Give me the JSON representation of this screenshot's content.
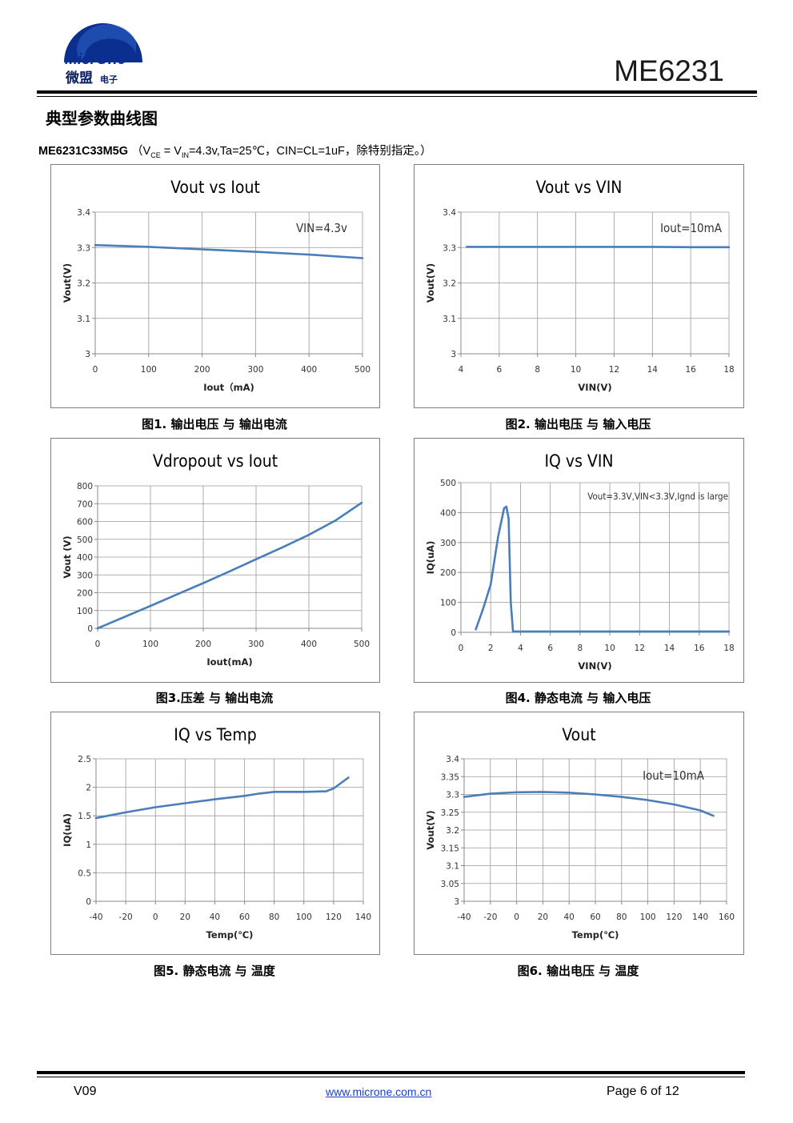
{
  "header": {
    "logo_text_en": "MicrOne",
    "logo_text_cn": "微盟",
    "logo_text_small": "电子",
    "doc_title": "ME6231"
  },
  "section_title": "典型参数曲线图",
  "conditions": {
    "part": "ME6231C33M5G",
    "text_open": "（V",
    "sub_ce": "CE",
    "text_mid": " = V",
    "sub_in": "IN",
    "text_rest": "=4.3v,Ta=25℃，CIN=CL=1uF，除特别指定。）"
  },
  "captions": [
    "图1. 输出电压 与 输出电流",
    "图2. 输出电压 与 输入电压",
    "图3.压差 与 输出电流",
    "图4. 静态电流 与 输入电压",
    "图5. 静态电流 与 温度",
    "图6. 输出电压 与 温度"
  ],
  "colors": {
    "series": "#4a7ebb",
    "grid": "#9a9a9a",
    "axis": "#8a8a8a",
    "box": "#7f7f7f"
  },
  "chart_data": [
    {
      "type": "line",
      "title": "Vout vs Iout",
      "xlabel": "Iout（mA)",
      "ylabel": "Vout(V)",
      "annotation": "VIN=4.3v",
      "xlim": [
        0,
        500
      ],
      "ylim": [
        3,
        3.4
      ],
      "xticks": [
        "0",
        "100",
        "200",
        "300",
        "400",
        "500"
      ],
      "yticks": [
        "3",
        "3.1",
        "3.2",
        "3.3",
        "3.4"
      ],
      "x": [
        0,
        100,
        200,
        300,
        400,
        500
      ],
      "y": [
        3.307,
        3.302,
        3.295,
        3.288,
        3.28,
        3.27
      ]
    },
    {
      "type": "line",
      "title": "Vout vs VIN",
      "xlabel": "VIN(V)",
      "ylabel": "Vout(V)",
      "annotation": "Iout=10mA",
      "xlim": [
        4,
        18
      ],
      "ylim": [
        3,
        3.4
      ],
      "xticks": [
        "4",
        "6",
        "8",
        "10",
        "12",
        "14",
        "16",
        "18"
      ],
      "yticks": [
        "3",
        "3.1",
        "3.2",
        "3.3",
        "3.4"
      ],
      "x": [
        4.3,
        6,
        8,
        10,
        12,
        14,
        16,
        18
      ],
      "y": [
        3.302,
        3.302,
        3.302,
        3.302,
        3.302,
        3.302,
        3.301,
        3.301
      ]
    },
    {
      "type": "line",
      "title": "Vdropout vs Iout",
      "xlabel": "Iout(mA)",
      "ylabel": "Vout (V)",
      "xlim": [
        0,
        500
      ],
      "ylim": [
        0,
        800
      ],
      "xticks": [
        "0",
        "100",
        "200",
        "300",
        "400",
        "500"
      ],
      "yticks": [
        "0",
        "100",
        "200",
        "300",
        "400",
        "500",
        "600",
        "700",
        "800"
      ],
      "x": [
        0,
        50,
        100,
        150,
        200,
        250,
        300,
        350,
        400,
        450,
        500
      ],
      "y": [
        0,
        63,
        126,
        190,
        254,
        320,
        388,
        455,
        525,
        605,
        705
      ]
    },
    {
      "type": "line",
      "title": "IQ vs VIN",
      "xlabel": "VIN(V)",
      "ylabel": "IQ(uA)",
      "annotation": "Vout=3.3V,VIN<3.3V,Ignd  is large",
      "xlim": [
        0,
        18
      ],
      "ylim": [
        0,
        500
      ],
      "xticks": [
        "0",
        "2",
        "4",
        "6",
        "8",
        "10",
        "12",
        "14",
        "16",
        "18"
      ],
      "yticks": [
        "0",
        "100",
        "200",
        "300",
        "400",
        "500"
      ],
      "x": [
        1,
        1.5,
        2,
        2.5,
        2.9,
        3.05,
        3.2,
        3.35,
        3.5,
        4,
        6,
        10,
        14,
        18
      ],
      "y": [
        10,
        80,
        160,
        320,
        415,
        420,
        380,
        100,
        3,
        3,
        3,
        3,
        3,
        3
      ]
    },
    {
      "type": "line",
      "title": "IQ vs Temp",
      "xlabel": "Temp(℃)",
      "ylabel": "IQ(uA)",
      "xlim": [
        -40,
        140
      ],
      "ylim": [
        0,
        2.5
      ],
      "xticks": [
        "-40",
        "-20",
        "0",
        "20",
        "40",
        "60",
        "80",
        "100",
        "120",
        "140"
      ],
      "yticks": [
        "0",
        "0.5",
        "1",
        "1.5",
        "2",
        "2.5"
      ],
      "x": [
        -40,
        -20,
        0,
        20,
        40,
        60,
        70,
        80,
        100,
        115,
        120,
        130
      ],
      "y": [
        1.46,
        1.56,
        1.65,
        1.72,
        1.79,
        1.85,
        1.89,
        1.92,
        1.92,
        1.93,
        1.98,
        2.17
      ]
    },
    {
      "type": "line",
      "title": "Vout",
      "xlabel": "Temp(℃)",
      "ylabel": "Vout(V)",
      "annotation": "Iout=10mA",
      "xlim": [
        -40,
        160
      ],
      "ylim": [
        3,
        3.4
      ],
      "xticks": [
        "-40",
        "-20",
        "0",
        "20",
        "40",
        "60",
        "80",
        "100",
        "120",
        "140",
        "160"
      ],
      "yticks": [
        "3",
        "3.05",
        "3.1",
        "3.15",
        "3.2",
        "3.25",
        "3.3",
        "3.35",
        "3.4"
      ],
      "x": [
        -40,
        -20,
        0,
        20,
        40,
        60,
        80,
        100,
        120,
        140,
        150
      ],
      "y": [
        3.293,
        3.302,
        3.306,
        3.307,
        3.305,
        3.3,
        3.293,
        3.284,
        3.272,
        3.255,
        3.24
      ]
    }
  ],
  "footer": {
    "version": "V09",
    "url": "www.microne.com.cn",
    "page": "Page 6 of 12"
  }
}
